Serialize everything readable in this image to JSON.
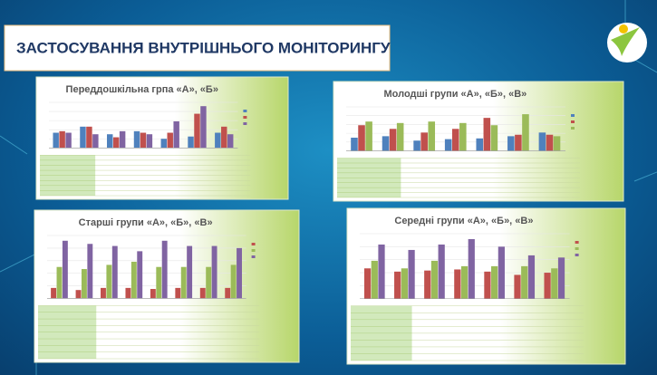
{
  "title": "ЗАСТОСУВАННЯ ВНУТРІШНЬОГО МОНІТОРИНГУ",
  "charts": [
    {
      "type": "bar",
      "title": "Переддошкільна грпа «А», «Б»",
      "ylim": [
        0,
        60
      ],
      "categories": [
        null,
        null,
        null,
        null,
        null,
        null,
        null
      ],
      "series": [
        {
          "color": "#4f81bd",
          "values": [
            20,
            28,
            18,
            22,
            12,
            15,
            20
          ]
        },
        {
          "color": "#c0504d",
          "values": [
            22,
            28,
            14,
            20,
            20,
            45,
            28
          ]
        },
        {
          "color": "#8064a2",
          "values": [
            20,
            18,
            22,
            18,
            35,
            55,
            18
          ]
        }
      ]
    },
    {
      "type": "bar",
      "title": "Молодші групи «А», «Б», «В»",
      "ylim": [
        0,
        60
      ],
      "categories": [
        null,
        null,
        null,
        null,
        null,
        null,
        null
      ],
      "series": [
        {
          "color": "#4f81bd",
          "values": [
            18,
            20,
            14,
            16,
            17,
            20,
            25
          ]
        },
        {
          "color": "#c0504d",
          "values": [
            35,
            30,
            25,
            30,
            45,
            22,
            22
          ]
        },
        {
          "color": "#9bbb59",
          "values": [
            40,
            38,
            40,
            38,
            35,
            50,
            20
          ]
        }
      ]
    },
    {
      "type": "bar",
      "title": "Старші групи «А», «Б», «В»",
      "ylim": [
        0,
        60
      ],
      "categories": [
        null,
        null,
        null,
        null,
        null,
        null,
        null,
        null
      ],
      "series": [
        {
          "color": "#c0504d",
          "values": [
            10,
            8,
            10,
            10,
            9,
            10,
            10,
            10
          ]
        },
        {
          "color": "#9bbb59",
          "values": [
            30,
            28,
            32,
            35,
            30,
            30,
            30,
            32
          ]
        },
        {
          "color": "#8064a2",
          "values": [
            55,
            52,
            50,
            45,
            55,
            50,
            50,
            48
          ]
        }
      ]
    },
    {
      "type": "bar",
      "title": "Середні групи «А», «Б», «В»",
      "ylim": [
        0,
        60
      ],
      "categories": [
        null,
        null,
        null,
        null,
        null,
        null,
        null
      ],
      "series": [
        {
          "color": "#c0504d",
          "values": [
            28,
            25,
            26,
            27,
            25,
            22,
            24
          ]
        },
        {
          "color": "#9bbb59",
          "values": [
            35,
            28,
            35,
            30,
            30,
            30,
            28
          ]
        },
        {
          "color": "#8064a2",
          "values": [
            50,
            45,
            50,
            55,
            48,
            40,
            38
          ]
        }
      ]
    }
  ]
}
